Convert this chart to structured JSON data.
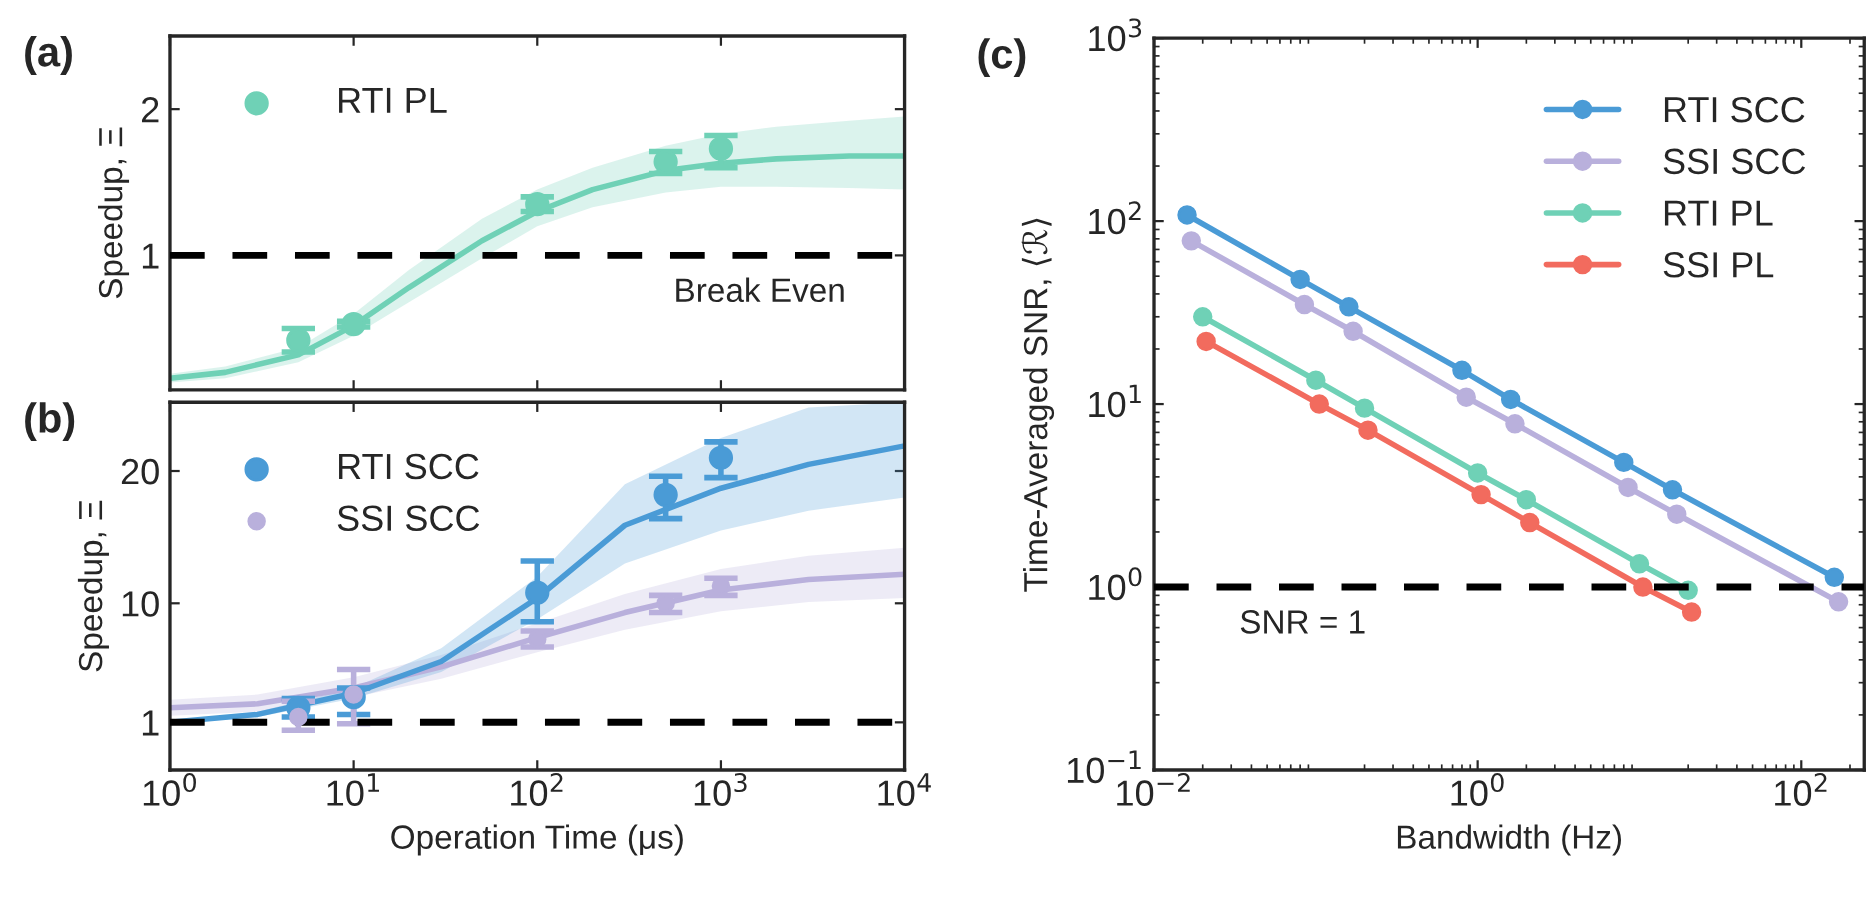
{
  "chart_data": [
    {
      "type": "scatter",
      "title": "(a)",
      "ylabel": "Speedup, Ξ",
      "log": "x",
      "tick_labels": "y",
      "grid": false,
      "legend": "top left",
      "xlim": [
        1,
        10000
      ],
      "xticks": [
        {
          "value": 1,
          "label": null
        },
        {
          "value": 10,
          "label": null
        },
        {
          "value": 100,
          "label": null
        },
        {
          "value": 1000,
          "label": null
        },
        {
          "value": 10000,
          "label": null
        }
      ],
      "ylim": [
        0.08,
        2.5
      ],
      "yticks": [
        1,
        2
      ],
      "ref_lines": [
        {
          "axis": "y",
          "value": 1,
          "color": "#000000",
          "line_style": "dashed",
          "label": "Break Even"
        }
      ],
      "series": [
        {
          "type": "line",
          "marker": "none",
          "color": "#6fd1b6",
          "x": [
            1,
            2,
            5,
            10,
            20,
            50,
            100,
            200,
            500,
            1000,
            2000,
            5000,
            10000
          ],
          "values": [
            0.16,
            0.2,
            0.32,
            0.52,
            0.78,
            1.1,
            1.3,
            1.45,
            1.58,
            1.63,
            1.66,
            1.68,
            1.68
          ],
          "lower": [
            0.13,
            0.16,
            0.27,
            0.45,
            0.68,
            0.98,
            1.2,
            1.33,
            1.43,
            1.47,
            1.47,
            1.46,
            1.45
          ],
          "upper": [
            0.19,
            0.24,
            0.37,
            0.6,
            0.9,
            1.25,
            1.45,
            1.6,
            1.75,
            1.83,
            1.88,
            1.92,
            1.95
          ]
        },
        {
          "type": "scatter",
          "marker": "circle",
          "name": "RTI PL",
          "color": "#6fd1b6",
          "x": [
            5,
            10,
            100,
            500,
            1000
          ],
          "values": [
            0.42,
            0.53,
            1.35,
            1.64,
            1.73
          ],
          "errors": [
            [
              0.34,
              0.5
            ],
            [
              0.51,
              0.55
            ],
            [
              1.3,
              1.4
            ],
            [
              1.56,
              1.71
            ],
            [
              1.6,
              1.82
            ]
          ]
        }
      ]
    },
    {
      "type": "scatter",
      "title": "(b)",
      "ylabel": "Speedup, Ξ",
      "xlabel": "Operation Time (μs)",
      "log": "x",
      "grid": false,
      "legend": "top left",
      "xlim": [
        1,
        10000
      ],
      "xticks": [
        {
          "value": 1,
          "label": "10$^{0}$"
        },
        {
          "value": 10,
          "label": "10$^{1}$"
        },
        {
          "value": 100,
          "label": "10$^{2}$"
        },
        {
          "value": 1000,
          "label": "10$^{3}$"
        },
        {
          "value": 10000,
          "label": "10$^{4}$"
        }
      ],
      "ylim": [
        -2.6,
        25.2
      ],
      "yticks": [
        1,
        10,
        20
      ],
      "ref_lines": [
        {
          "axis": "y",
          "value": 1,
          "color": "#000000",
          "line_style": "dashed"
        }
      ],
      "series": [
        {
          "type": "line",
          "marker": "none",
          "color": "#b9b0dc",
          "x": [
            1,
            3,
            10,
            30,
            100,
            300,
            1000,
            3000,
            10000
          ],
          "values": [
            2.1,
            2.4,
            3.6,
            5.2,
            7.4,
            9.3,
            11,
            11.8,
            12.2
          ],
          "lower": [
            1.5,
            1.8,
            2.9,
            4.3,
            6.3,
            8,
            9.4,
            10.1,
            10.4
          ],
          "upper": [
            2.7,
            3.1,
            4.4,
            6.1,
            8.5,
            10.7,
            12.6,
            13.6,
            14.2
          ]
        },
        {
          "type": "line",
          "marker": "none",
          "color": "#4a9bd6",
          "x": [
            1,
            3,
            10,
            30,
            100,
            300,
            1000,
            3000,
            10000
          ],
          "values": [
            1.0,
            1.6,
            3.2,
            5.6,
            10.4,
            15.9,
            18.7,
            20.5,
            21.9
          ],
          "lower": [
            0.9,
            1.4,
            2.8,
            4.8,
            8.8,
            13,
            15.5,
            17,
            18
          ],
          "upper": [
            1.1,
            1.8,
            3.6,
            6.6,
            12,
            19,
            22.5,
            24.8,
            25.2
          ]
        },
        {
          "type": "scatter",
          "marker": "circle",
          "name": "RTI SCC",
          "color": "#4a9bd6",
          "x": [
            5,
            10,
            100,
            500,
            1000
          ],
          "values": [
            2.1,
            2.9,
            10.8,
            18.2,
            21.0
          ],
          "errors": [
            [
              1.4,
              2.8
            ],
            [
              1.6,
              3.6
            ],
            [
              8.6,
              13.2
            ],
            [
              16.4,
              19.6
            ],
            [
              19.5,
              22.2
            ]
          ]
        },
        {
          "type": "scatter",
          "marker": "circle",
          "name": "SSI SCC",
          "color": "#b9b0dc",
          "x": [
            5,
            10,
            100,
            500,
            1000
          ],
          "values": [
            1.4,
            3.1,
            7.3,
            10.0,
            11.3
          ],
          "errors": [
            [
              0.4,
              2.6
            ],
            [
              0.9,
              5.0
            ],
            [
              6.7,
              7.9
            ],
            [
              9.3,
              10.6
            ],
            [
              10.6,
              11.9
            ]
          ]
        }
      ]
    },
    {
      "type": "line",
      "title": "(c)",
      "ylabel": "Time-Averaged SNR, ⟨ℛ⟩",
      "xlabel": "Bandwidth (Hz)",
      "log": "xy",
      "grid": false,
      "legend": "top right",
      "marker": "circle",
      "xlim": [
        0.01,
        245
      ],
      "xticks": [
        {
          "value": 0.01,
          "label": "10$^{−2}$"
        },
        {
          "value": 1,
          "label": "10$^{0}$"
        },
        {
          "value": 100,
          "label": "10$^{2}$"
        }
      ],
      "ylim": [
        0.1,
        1000
      ],
      "yticks": [
        {
          "value": 0.1,
          "label": "10$^{−1}$"
        },
        {
          "value": 1,
          "label": "10$^{0}$"
        },
        {
          "value": 10,
          "label": "10$^{1}$"
        },
        {
          "value": 100,
          "label": "10$^{2}$"
        },
        {
          "value": 1000,
          "label": "10$^{3}$"
        }
      ],
      "ref_lines": [
        {
          "axis": "y",
          "value": 1,
          "color": "#000000",
          "line_style": "dashed",
          "label": "SNR = 1"
        }
      ],
      "series": [
        {
          "name": "RTI SCC",
          "color": "#4a9bd6",
          "x": [
            0.016,
            0.08,
            0.16,
            0.8,
            1.6,
            8,
            16,
            160
          ],
          "values": [
            108,
            48,
            34,
            15.3,
            10.6,
            4.8,
            3.4,
            1.13
          ]
        },
        {
          "name": "SSI SCC",
          "color": "#b9b0dc",
          "x": [
            0.017,
            0.085,
            0.17,
            0.85,
            1.7,
            8.5,
            17,
            170
          ],
          "values": [
            78,
            35,
            25,
            10.9,
            7.8,
            3.5,
            2.5,
            0.83
          ]
        },
        {
          "name": "RTI PL",
          "color": "#6fd1b6",
          "x": [
            0.02,
            0.1,
            0.2,
            1,
            2,
            10,
            20
          ],
          "values": [
            30,
            13.5,
            9.5,
            4.2,
            3.0,
            1.34,
            0.96
          ]
        },
        {
          "name": "SSI PL",
          "color": "#f26b5e",
          "x": [
            0.021,
            0.105,
            0.21,
            1.05,
            2.1,
            10.5,
            21
          ],
          "values": [
            22,
            10,
            7.2,
            3.2,
            2.25,
            1.0,
            0.73
          ]
        }
      ]
    }
  ]
}
